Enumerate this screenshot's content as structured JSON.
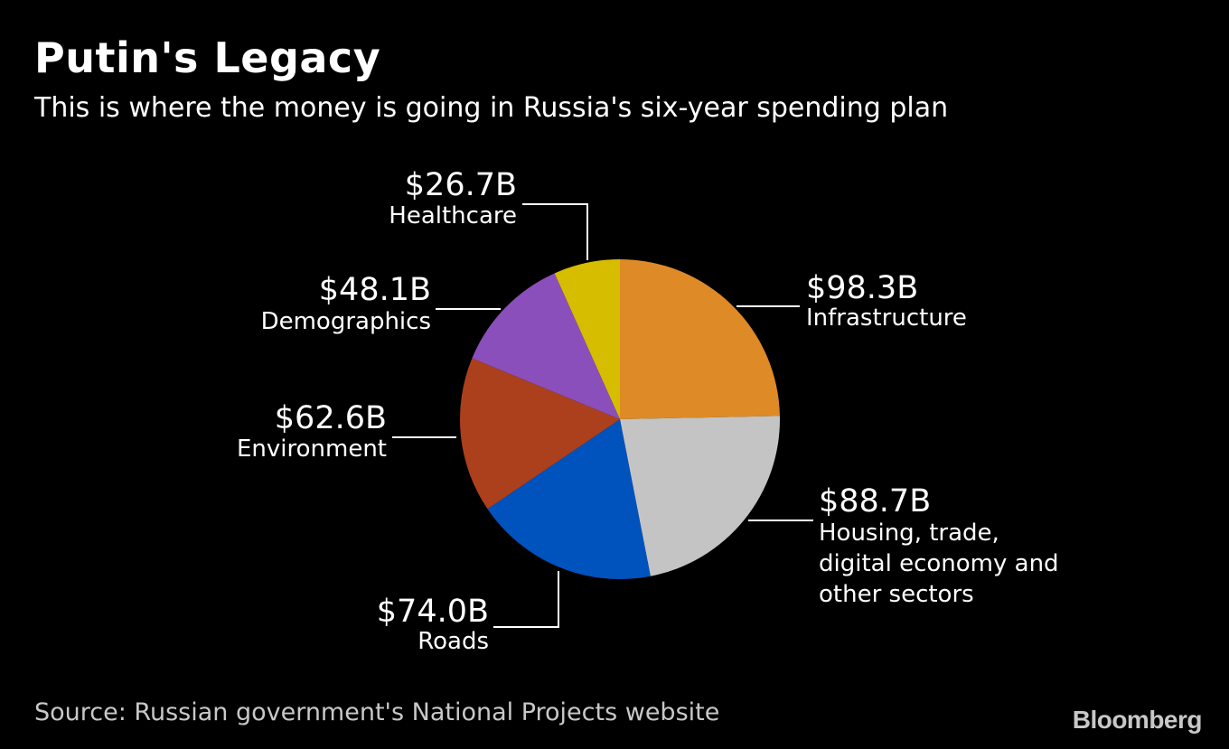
{
  "header": {
    "title": "Putin's Legacy",
    "subtitle": "This is where the money is going in Russia's six-year spending plan"
  },
  "footer": {
    "source": "Source: Russian government's National Projects website",
    "brand": "Bloomberg"
  },
  "chart_data": {
    "type": "pie",
    "title": "Putin's Legacy",
    "subtitle": "This is where the money is going in Russia's six-year spending plan",
    "unit": "USD billions",
    "start": "12 o'clock",
    "direction": "clockwise",
    "slices": [
      {
        "label": "Infrastructure",
        "label_lines": [
          "Infrastructure"
        ],
        "value": 98.3,
        "display": "$98.3B",
        "color": "#de8a27"
      },
      {
        "label": "Housing, trade, digital economy and other sectors",
        "label_lines": [
          "Housing, trade,",
          "digital economy and",
          "other sectors"
        ],
        "value": 88.7,
        "display": "$88.7B",
        "color": "#c4c4c4"
      },
      {
        "label": "Roads",
        "label_lines": [
          "Roads"
        ],
        "value": 74.0,
        "display": "$74.0B",
        "color": "#0053bd"
      },
      {
        "label": "Environment",
        "label_lines": [
          "Environment"
        ],
        "value": 62.6,
        "display": "$62.6B",
        "color": "#ac401c"
      },
      {
        "label": "Demographics",
        "label_lines": [
          "Demographics"
        ],
        "value": 48.1,
        "display": "$48.1B",
        "color": "#8a4fbb"
      },
      {
        "label": "Healthcare",
        "label_lines": [
          "Healthcare"
        ],
        "value": 26.7,
        "display": "$26.7B",
        "color": "#d7bd00"
      }
    ]
  }
}
